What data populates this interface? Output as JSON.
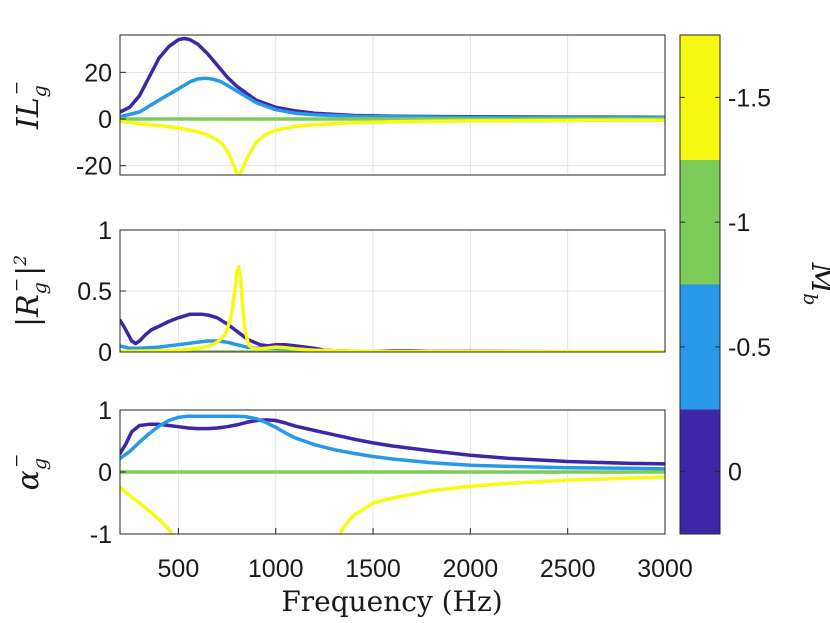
{
  "colors": {
    "mb_0": "#3e26a8",
    "mb_neg0_5": "#2898e8",
    "mb_neg1": "#7dcb59",
    "mb_neg1_5": "#f9fa14"
  },
  "chart_data": [
    {
      "type": "line",
      "ylabel": {
        "base": "IL",
        "sub": "g",
        "sup": "−"
      },
      "xlim": [
        200,
        3000
      ],
      "ylim": [
        -24,
        36
      ],
      "yticks": [
        -20,
        0,
        20
      ],
      "ytick_labels": [
        "-20",
        "0",
        "20"
      ],
      "grid": true,
      "series": [
        {
          "color": "#3e26a8",
          "x": [
            200,
            250,
            300,
            350,
            400,
            450,
            500,
            530,
            560,
            600,
            650,
            700,
            750,
            800,
            900,
            1000,
            1100,
            1200,
            1400,
            1600,
            2000,
            2500,
            3000
          ],
          "y": [
            3,
            5,
            10,
            18,
            26,
            31,
            34,
            34.5,
            34,
            32,
            28,
            23,
            18,
            14,
            8,
            5,
            3.5,
            2.5,
            1.5,
            1.2,
            1,
            0.8,
            0.7
          ]
        },
        {
          "color": "#2898e8",
          "x": [
            200,
            300,
            400,
            500,
            560,
            600,
            640,
            680,
            720,
            800,
            900,
            1000,
            1100,
            1200,
            1400,
            1600,
            2000,
            2500,
            3000
          ],
          "y": [
            1,
            3,
            8,
            13,
            16,
            17.2,
            17.5,
            17,
            16,
            12,
            7,
            4,
            2.5,
            1.8,
            1.2,
            1,
            0.7,
            0.6,
            0.5
          ]
        },
        {
          "color": "#7dcb59",
          "x": [
            200,
            3000
          ],
          "y": [
            0,
            0
          ]
        },
        {
          "color": "#f9fa14",
          "x": [
            200,
            300,
            400,
            500,
            600,
            650,
            700,
            730,
            760,
            780,
            800,
            810,
            820,
            840,
            870,
            900,
            950,
            1000,
            1100,
            1200,
            1300,
            1400,
            1600,
            1800,
            2000,
            2500,
            3000
          ],
          "y": [
            -1,
            -2,
            -2.8,
            -3.8,
            -5.5,
            -6.8,
            -9,
            -11,
            -15,
            -19,
            -23,
            -24,
            -23,
            -19,
            -14,
            -10,
            -6.5,
            -4.8,
            -3.2,
            -2.4,
            -2,
            -1.6,
            -1.2,
            -1,
            -0.8,
            -0.6,
            -0.5
          ]
        }
      ]
    },
    {
      "type": "line",
      "ylabel": {
        "base": "|R",
        "sub": "g",
        "sup": "−",
        "tail": "|",
        "pow": "2"
      },
      "xlim": [
        200,
        3000
      ],
      "ylim": [
        0,
        1
      ],
      "yticks": [
        0,
        0.5,
        1
      ],
      "ytick_labels": [
        "0",
        "0.5",
        "1"
      ],
      "grid": true,
      "series": [
        {
          "color": "#3e26a8",
          "x": [
            200,
            220,
            240,
            260,
            280,
            300,
            330,
            360,
            400,
            450,
            500,
            560,
            620,
            660,
            700,
            760,
            800,
            860,
            920,
            960,
            1000,
            1050,
            1100,
            1150,
            1200,
            1250,
            1300,
            1400,
            1500,
            1600,
            1700,
            1800,
            2000,
            2200,
            2500,
            3000
          ],
          "y": [
            0.26,
            0.21,
            0.15,
            0.09,
            0.07,
            0.09,
            0.14,
            0.18,
            0.21,
            0.25,
            0.28,
            0.31,
            0.31,
            0.3,
            0.28,
            0.22,
            0.17,
            0.1,
            0.06,
            0.05,
            0.06,
            0.06,
            0.05,
            0.04,
            0.03,
            0.015,
            0.01,
            0.005,
            0.005,
            0.01,
            0.01,
            0.005,
            0.005,
            0.003,
            0.002,
            0.002
          ]
        },
        {
          "color": "#2898e8",
          "x": [
            200,
            250,
            300,
            400,
            500,
            600,
            650,
            700,
            750,
            800,
            850,
            900,
            950,
            1000,
            1100,
            1200,
            1300,
            1400,
            1600,
            2000,
            2500,
            3000
          ],
          "y": [
            0.05,
            0.03,
            0.03,
            0.04,
            0.06,
            0.08,
            0.09,
            0.09,
            0.08,
            0.06,
            0.04,
            0.03,
            0.03,
            0.03,
            0.02,
            0.015,
            0.01,
            0.005,
            0.005,
            0.003,
            0.002,
            0.002
          ]
        },
        {
          "color": "#7dcb59",
          "x": [
            200,
            3000
          ],
          "y": [
            0,
            0
          ]
        },
        {
          "color": "#f9fa14",
          "x": [
            200,
            300,
            400,
            500,
            600,
            650,
            700,
            740,
            770,
            790,
            800,
            810,
            820,
            830,
            840,
            860,
            880,
            900,
            920,
            950,
            1000,
            1050,
            1100,
            1200,
            1300,
            1500,
            2000,
            2500,
            3000
          ],
          "y": [
            0.005,
            0.008,
            0.01,
            0.015,
            0.03,
            0.045,
            0.08,
            0.14,
            0.28,
            0.5,
            0.65,
            0.7,
            0.6,
            0.38,
            0.2,
            0.06,
            0.03,
            0.025,
            0.025,
            0.03,
            0.04,
            0.035,
            0.025,
            0.015,
            0.01,
            0.005,
            0.003,
            0.002,
            0.002
          ]
        }
      ]
    },
    {
      "type": "line",
      "ylabel": {
        "base": "α",
        "sub": "g",
        "sup": "−"
      },
      "xlabel": "Frequency (Hz)",
      "xlim": [
        200,
        3000
      ],
      "ylim": [
        -1,
        1
      ],
      "yticks": [
        -1,
        0,
        1
      ],
      "ytick_labels": [
        "-1",
        "0",
        "1"
      ],
      "xticks": [
        500,
        1000,
        1500,
        2000,
        2500,
        3000
      ],
      "xtick_labels": [
        "500",
        "1000",
        "1500",
        "2000",
        "2500",
        "3000"
      ],
      "grid": true,
      "series": [
        {
          "color": "#3e26a8",
          "x": [
            200,
            230,
            260,
            300,
            350,
            400,
            450,
            500,
            550,
            600,
            650,
            700,
            750,
            800,
            850,
            900,
            950,
            1000,
            1050,
            1100,
            1200,
            1300,
            1400,
            1500,
            1600,
            1800,
            2000,
            2200,
            2500,
            2800,
            3000
          ],
          "y": [
            0.3,
            0.45,
            0.65,
            0.75,
            0.77,
            0.77,
            0.75,
            0.73,
            0.71,
            0.7,
            0.7,
            0.71,
            0.73,
            0.76,
            0.8,
            0.83,
            0.84,
            0.83,
            0.79,
            0.74,
            0.67,
            0.6,
            0.53,
            0.47,
            0.42,
            0.34,
            0.27,
            0.22,
            0.17,
            0.14,
            0.13
          ]
        },
        {
          "color": "#2898e8",
          "x": [
            200,
            250,
            300,
            350,
            400,
            450,
            500,
            550,
            600,
            700,
            800,
            850,
            900,
            950,
            1000,
            1050,
            1100,
            1200,
            1300,
            1400,
            1500,
            1600,
            1800,
            2000,
            2200,
            2500,
            2800,
            3000
          ],
          "y": [
            0.22,
            0.33,
            0.48,
            0.62,
            0.74,
            0.83,
            0.88,
            0.9,
            0.9,
            0.9,
            0.9,
            0.89,
            0.86,
            0.8,
            0.72,
            0.63,
            0.55,
            0.44,
            0.36,
            0.3,
            0.25,
            0.21,
            0.15,
            0.11,
            0.09,
            0.07,
            0.06,
            0.05
          ]
        },
        {
          "color": "#7dcb59",
          "x": [
            200,
            3000
          ],
          "y": [
            0,
            0
          ]
        },
        {
          "color": "#f9fa14",
          "x": [
            200,
            250,
            300,
            350,
            400,
            450,
            480
          ],
          "y": [
            -0.25,
            -0.38,
            -0.5,
            -0.63,
            -0.76,
            -0.92,
            -1.05
          ]
        },
        {
          "color": "#f9fa14",
          "x": [
            1320,
            1350,
            1400,
            1450,
            1500,
            1600,
            1700,
            1800,
            2000,
            2200,
            2500,
            2800,
            3000
          ],
          "y": [
            -1.05,
            -0.88,
            -0.7,
            -0.6,
            -0.5,
            -0.42,
            -0.36,
            -0.3,
            -0.23,
            -0.18,
            -0.13,
            -0.1,
            -0.08
          ]
        }
      ]
    }
  ],
  "colorbar": {
    "label": {
      "base": "M",
      "sub": "b"
    },
    "ticks": [
      "0",
      "-0.5",
      "-1",
      "-1.5"
    ],
    "levels": [
      {
        "value": "0",
        "color": "#3e26a8"
      },
      {
        "value": "-0.5",
        "color": "#2898e8"
      },
      {
        "value": "-1",
        "color": "#7dcb59"
      },
      {
        "value": "-1.5",
        "color": "#f9fa14"
      }
    ]
  }
}
